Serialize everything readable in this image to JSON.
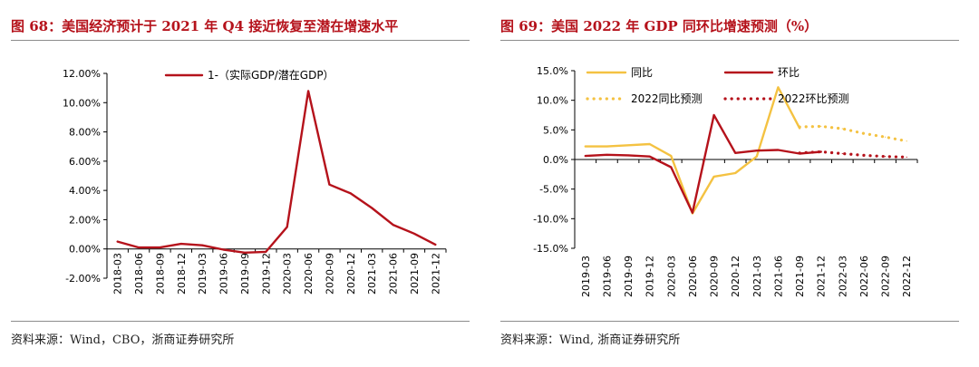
{
  "left": {
    "title": "图 68：美国经济预计于 2021 年 Q4 接近恢复至潜在增速水平",
    "source": "资料来源：Wind，CBO，浙商证券研究所"
  },
  "right": {
    "title": "图 69：美国 2022 年 GDP 同环比增速预测（%）",
    "source": "资料来源：Wind, 浙商证券研究所"
  },
  "colors": {
    "red": "#b5121b",
    "yellow": "#f4c242",
    "axis": "#000000",
    "rule": "#8c8c8c"
  },
  "chart_data": [
    {
      "type": "line",
      "title": "图 68：美国经济预计于 2021 年 Q4 接近恢复至潜在增速水平",
      "x": [
        "2018-03",
        "2018-06",
        "2018-09",
        "2018-12",
        "2019-03",
        "2019-06",
        "2019-09",
        "2019-12",
        "2020-03",
        "2020-06",
        "2020-09",
        "2020-12",
        "2021-03",
        "2021-06",
        "2021-09",
        "2021-12"
      ],
      "ylim": [
        -2,
        12
      ],
      "yticks": [
        -2,
        0,
        2,
        4,
        6,
        8,
        10,
        12
      ],
      "ytick_labels": [
        "-2.00%",
        "0.00%",
        "2.00%",
        "4.00%",
        "6.00%",
        "8.00%",
        "10.00%",
        "12.00%"
      ],
      "series": [
        {
          "name": "1-（实际GDP/潜在GDP）",
          "color": "#b5121b",
          "style": "solid",
          "values": [
            0.5,
            0.1,
            0.1,
            0.35,
            0.25,
            -0.05,
            -0.25,
            -0.2,
            1.5,
            10.8,
            4.4,
            3.8,
            2.8,
            1.65,
            1.05,
            0.3
          ]
        }
      ],
      "legend": "top-center"
    },
    {
      "type": "line",
      "title": "图 69：美国 2022 年 GDP 同环比增速预测（%）",
      "x": [
        "2019-03",
        "2019-06",
        "2019-09",
        "2019-12",
        "2020-03",
        "2020-06",
        "2020-09",
        "2020-12",
        "2021-03",
        "2021-06",
        "2021-09",
        "2021-12",
        "2022-03",
        "2022-06",
        "2022-09",
        "2022-12"
      ],
      "ylim": [
        -15,
        15
      ],
      "yticks": [
        -15,
        -10,
        -5,
        0,
        5,
        10,
        15
      ],
      "ytick_labels": [
        "-15.0%",
        "-10.0%",
        "-5.0%",
        "0.0%",
        "5.0%",
        "10.0%",
        "15.0%"
      ],
      "series": [
        {
          "name": "同比",
          "color": "#f4c242",
          "style": "solid",
          "values": [
            2.2,
            2.2,
            2.4,
            2.6,
            0.6,
            -9.1,
            -2.9,
            -2.3,
            0.5,
            12.2,
            5.3,
            null,
            null,
            null,
            null,
            null
          ]
        },
        {
          "name": "环比",
          "color": "#b5121b",
          "style": "solid",
          "values": [
            0.6,
            0.8,
            0.7,
            0.5,
            -1.3,
            -9.0,
            7.5,
            1.1,
            1.5,
            1.6,
            1.0,
            1.3,
            null,
            null,
            null,
            null
          ]
        },
        {
          "name": "2022同比预测",
          "color": "#f4c242",
          "style": "dotted",
          "values": [
            null,
            null,
            null,
            null,
            null,
            null,
            null,
            null,
            null,
            null,
            5.5,
            5.6,
            5.2,
            4.4,
            3.8,
            3.1
          ]
        },
        {
          "name": "2022环比预测",
          "color": "#b5121b",
          "style": "dotted",
          "values": [
            null,
            null,
            null,
            null,
            null,
            null,
            null,
            null,
            null,
            null,
            1.1,
            1.3,
            1.0,
            0.7,
            0.5,
            0.4
          ]
        }
      ],
      "legend": "top"
    }
  ]
}
